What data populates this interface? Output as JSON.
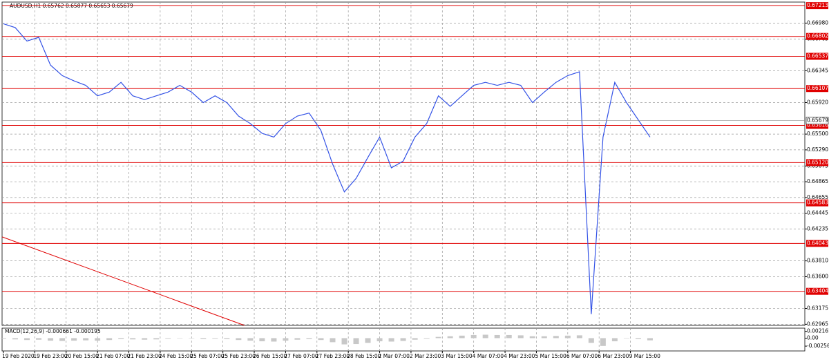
{
  "chart_data": {
    "type": "line",
    "title": "AUDUSD,H1  0.65762 0.65877 0.65653 0.65679",
    "x": [
      0,
      6,
      12,
      18,
      24,
      30,
      36,
      42,
      48,
      54,
      60,
      66,
      72,
      78,
      84,
      90,
      96,
      102,
      108,
      114,
      120,
      126,
      132,
      138,
      144,
      150,
      156,
      162,
      168,
      174,
      180,
      186,
      192,
      198,
      204,
      210,
      216,
      222,
      228,
      234,
      240,
      246,
      252,
      258,
      264,
      270,
      276,
      282,
      288,
      294,
      300,
      306,
      312,
      318,
      324,
      330
    ],
    "xlim": [
      0,
      409
    ],
    "xticks": [
      {
        "value": 0,
        "label": "19 Feb 2020"
      },
      {
        "value": 16,
        "label": "19 Feb 23:00"
      },
      {
        "value": 32,
        "label": "20 Feb 15:00"
      },
      {
        "value": 48,
        "label": "21 Feb 07:00"
      },
      {
        "value": 64,
        "label": "21 Feb 23:00"
      },
      {
        "value": 80,
        "label": "24 Feb 15:00"
      },
      {
        "value": 96,
        "label": "25 Feb 07:00"
      },
      {
        "value": 112,
        "label": "25 Feb 23:00"
      },
      {
        "value": 128,
        "label": "26 Feb 15:00"
      },
      {
        "value": 144,
        "label": "27 Feb 07:00"
      },
      {
        "value": 160,
        "label": "27 Feb 23:00"
      },
      {
        "value": 176,
        "label": "28 Feb 15:00"
      },
      {
        "value": 192,
        "label": "2 Mar 07:00"
      },
      {
        "value": 208,
        "label": "2 Mar 23:00"
      },
      {
        "value": 224,
        "label": "3 Mar 15:00"
      },
      {
        "value": 240,
        "label": "4 Mar 07:00"
      },
      {
        "value": 256,
        "label": "4 Mar 23:00"
      },
      {
        "value": 272,
        "label": "5 Mar 15:00"
      },
      {
        "value": 288,
        "label": "6 Mar 07:00"
      },
      {
        "value": 304,
        "label": "6 Mar 23:00"
      },
      {
        "value": 320,
        "label": "9 Mar 15:00"
      }
    ],
    "series": [
      {
        "name": "AUDUSD,H1",
        "color": "#3352e6",
        "values": [
          0.6697,
          0.6692,
          0.6674,
          0.6679,
          0.6642,
          0.6628,
          0.6621,
          0.6615,
          0.6601,
          0.6606,
          0.6619,
          0.6601,
          0.6596,
          0.6601,
          0.6606,
          0.6615,
          0.6606,
          0.6592,
          0.6601,
          0.6592,
          0.6574,
          0.6564,
          0.6551,
          0.6546,
          0.6564,
          0.6574,
          0.6578,
          0.6555,
          0.651,
          0.6473,
          0.6491,
          0.6519,
          0.6546,
          0.6505,
          0.6514,
          0.6546,
          0.6564,
          0.6601,
          0.6587,
          0.6601,
          0.6615,
          0.6619,
          0.6615,
          0.6619,
          0.6615,
          0.6592,
          0.6606,
          0.6619,
          0.6628,
          0.6633,
          0.631,
          0.6546,
          0.6619,
          0.6592,
          0.6569,
          0.6546
        ]
      }
    ],
    "ylim": [
      0.6295,
      0.6726
    ],
    "yticks": [
      {
        "value": 0.6698,
        "label": "0.66980"
      },
      {
        "value": 0.66765,
        "label": "0.66765"
      },
      {
        "value": 0.66345,
        "label": "0.66345"
      },
      {
        "value": 0.6592,
        "label": "0.65920"
      },
      {
        "value": 0.655,
        "label": "0.65500"
      },
      {
        "value": 0.6529,
        "label": "0.65290"
      },
      {
        "value": 0.65075,
        "label": "0.65075"
      },
      {
        "value": 0.64865,
        "label": "0.64865"
      },
      {
        "value": 0.64655,
        "label": "0.64655"
      },
      {
        "value": 0.64445,
        "label": "0.64445"
      },
      {
        "value": 0.64235,
        "label": "0.64235"
      },
      {
        "value": 0.6381,
        "label": "0.63810"
      },
      {
        "value": 0.636,
        "label": "0.63600"
      },
      {
        "value": 0.63175,
        "label": "0.63175"
      },
      {
        "value": 0.62965,
        "label": "0.62965"
      }
    ],
    "grid": true,
    "levels_color": "#e00000",
    "levels": [
      {
        "value": 0.67213,
        "label": "0.67213"
      },
      {
        "value": 0.66802,
        "label": "0.66802"
      },
      {
        "value": 0.66537,
        "label": "0.66537"
      },
      {
        "value": 0.66107,
        "label": "0.66107"
      },
      {
        "value": 0.65616,
        "label": "0.65616"
      },
      {
        "value": 0.6512,
        "label": "0.65120"
      },
      {
        "value": 0.64583,
        "label": "0.64583"
      },
      {
        "value": 0.64043,
        "label": "0.64043"
      },
      {
        "value": 0.63404,
        "label": "0.63404"
      }
    ],
    "current_price": 0.65679,
    "trendline": {
      "x": [
        0,
        123
      ],
      "values": [
        0.6413,
        0.6295
      ]
    },
    "macd": {
      "title": "MACD(12,26,9) -0.000661 -0.000195",
      "color": "#c8c8c8",
      "ylim": [
        -0.0041,
        0.0032
      ],
      "yticks": [
        {
          "value": 0.002161,
          "label": "0.002161"
        },
        {
          "value": 0,
          "label": "0.00"
        },
        {
          "value": -0.002561,
          "label": "-0.002561"
        }
      ],
      "values": [
        -0.0002,
        -0.0004,
        -0.0006,
        -0.0005,
        -0.0008,
        -0.0009,
        -0.0008,
        -0.0007,
        -0.0008,
        -0.0006,
        -0.0003,
        -0.0004,
        -0.0005,
        -0.0004,
        -0.0002,
        0.0,
        -0.0001,
        -0.0003,
        -0.0002,
        -0.0003,
        -0.0006,
        -0.0008,
        -0.001,
        -0.0011,
        -0.0008,
        -0.0005,
        -0.0003,
        -0.0006,
        -0.0013,
        -0.002,
        -0.0019,
        -0.0015,
        -0.001,
        -0.0011,
        -0.0009,
        -0.0005,
        -0.0002,
        0.0004,
        0.0006,
        0.0008,
        0.001,
        0.0011,
        0.001,
        0.001,
        0.0009,
        0.0006,
        0.0006,
        0.0007,
        0.0008,
        0.0009,
        -0.0015,
        -0.0025,
        -0.001,
        0.0,
        -0.0003,
        -0.0007
      ]
    }
  }
}
